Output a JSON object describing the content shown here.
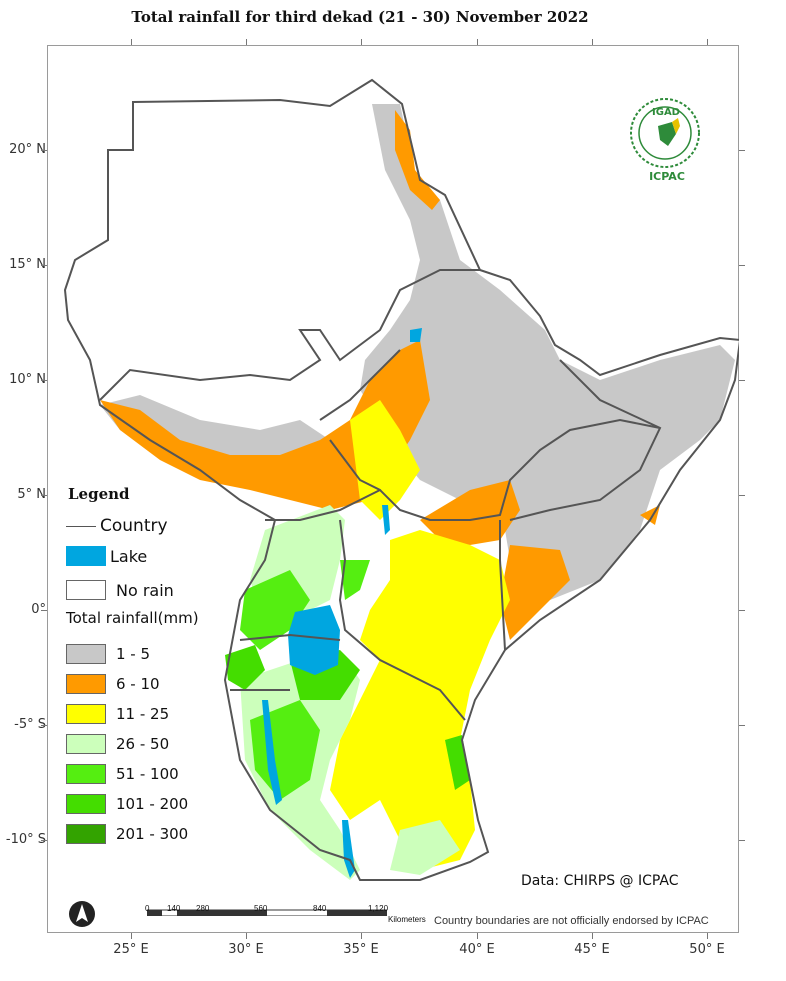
{
  "title": "Total rainfall  for  third  dekad (21 - 30)  November 2022",
  "axes": {
    "lat_labels": [
      "20° N",
      "15° N",
      "10° N",
      "5° N",
      "0°",
      "-5° S",
      "-10° S"
    ],
    "lon_labels": [
      "25° E",
      "30° E",
      "35° E",
      "40° E",
      "45° E",
      "50° E"
    ]
  },
  "legend": {
    "title": "Legend",
    "country_label": "Country",
    "lake_label": "Lake",
    "no_rain_label": "No rain",
    "rainfall_title": "Total rainfall(mm)",
    "classes": [
      {
        "label": "1 - 5",
        "color": "#c8c8c8"
      },
      {
        "label": "6 - 10",
        "color": "#ff9a00"
      },
      {
        "label": "11 - 25",
        "color": "#ffff00"
      },
      {
        "label": "26 - 50",
        "color": "#ccffbb"
      },
      {
        "label": "51 - 100",
        "color": "#55ee11"
      },
      {
        "label": "101 - 200",
        "color": "#44dd00"
      },
      {
        "label": "201 - 300",
        "color": "#33a300"
      }
    ],
    "lake_color": "#00a6e0"
  },
  "scale_bar": {
    "ticks": [
      "0",
      "140",
      "280",
      "560",
      "840",
      "1,120"
    ],
    "unit": "Kilometers"
  },
  "logo": {
    "org": "IGAD",
    "sub": "ICPAC"
  },
  "data_note": "Data: CHIRPS @ ICPAC",
  "disclaimer": "Country boundaries are not officially endorsed by ICPAC"
}
